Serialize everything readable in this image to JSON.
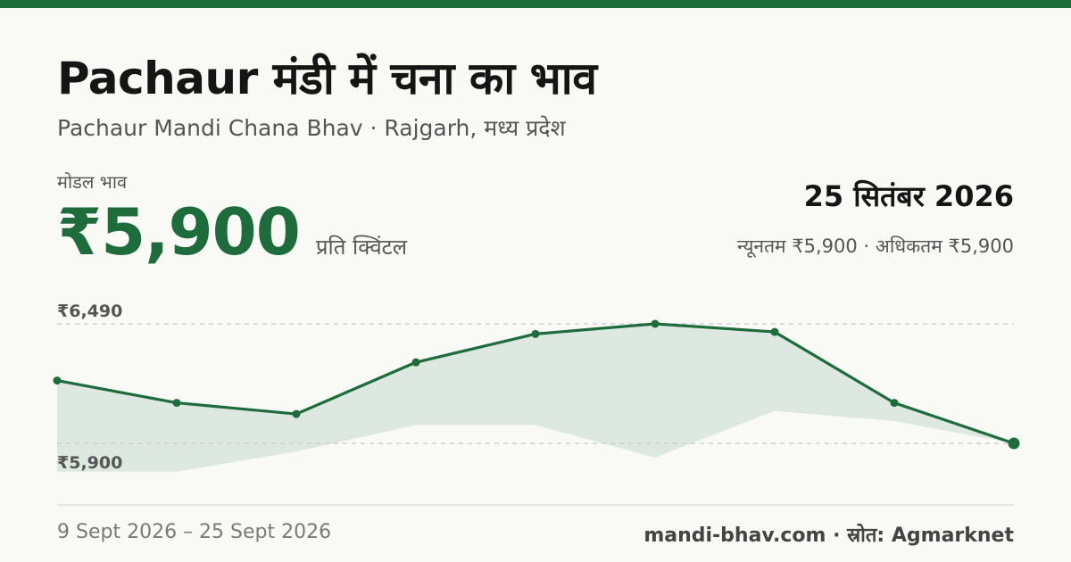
{
  "header": {
    "title": "Pachaur मंडी में चना का भाव",
    "subtitle": "Pachaur Mandi Chana Bhav · Rajgarh, मध्य प्रदेश"
  },
  "price": {
    "label": "मोडल भाव",
    "value": "₹5,900",
    "unit": "प्रति क्विंटल"
  },
  "summary": {
    "date": "25 सितंबर 2026",
    "range": "न्यूनतम ₹5,900 · अधिकतम ₹5,900"
  },
  "footer": {
    "period": "9 Sept 2026 – 25 Sept 2026",
    "source": "mandi-bhav.com · स्रोत: Agmarknet"
  },
  "colors": {
    "accent": "#1e6b3c",
    "band": "#dde8e0",
    "grid": "#c8c8c8"
  },
  "chart_data": {
    "type": "line",
    "series": [
      {
        "values": [
          6210,
          6100,
          6045,
          6300,
          6440,
          6490,
          6450,
          6100,
          5900
        ]
      }
    ],
    "band": {
      "upper": [
        6210,
        6100,
        6045,
        6300,
        6440,
        6490,
        6450,
        6100,
        5900
      ],
      "lower": [
        5760,
        5760,
        5860,
        5990,
        5990,
        5830,
        6060,
        6010,
        5900
      ]
    },
    "reference_lines": [
      {
        "value": 6490,
        "label": "₹6,490"
      },
      {
        "value": 5900,
        "label": "₹5,900"
      }
    ],
    "grid": false,
    "legend": "none"
  }
}
